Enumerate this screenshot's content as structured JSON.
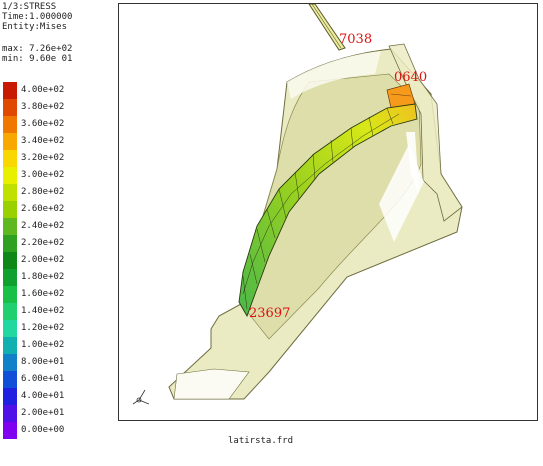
{
  "info": {
    "line1": "1/3:STRESS",
    "line2": "Time:1.000000",
    "line3": "Entity:Mises",
    "max": "max: 7.26e+02",
    "min": "min: 9.60e 01"
  },
  "legend": {
    "entries": [
      {
        "label": "4.00e+02",
        "color": "#c81a00"
      },
      {
        "label": "3.80e+02",
        "color": "#e04a00"
      },
      {
        "label": "3.60e+02",
        "color": "#f07800"
      },
      {
        "label": "3.40e+02",
        "color": "#f8a800"
      },
      {
        "label": "3.20e+02",
        "color": "#f8d800"
      },
      {
        "label": "3.00e+02",
        "color": "#e8f000"
      },
      {
        "label": "2.80e+02",
        "color": "#c0e000"
      },
      {
        "label": "2.60e+02",
        "color": "#98d000"
      },
      {
        "label": "2.40e+02",
        "color": "#60b820"
      },
      {
        "label": "2.20e+02",
        "color": "#30a020"
      },
      {
        "label": "2.00e+02",
        "color": "#108818"
      },
      {
        "label": "1.80e+02",
        "color": "#10a030"
      },
      {
        "label": "1.60e+02",
        "color": "#18c048"
      },
      {
        "label": "1.40e+02",
        "color": "#20d070"
      },
      {
        "label": "1.20e+02",
        "color": "#20d8a0"
      },
      {
        "label": "1.00e+02",
        "color": "#10b0b0"
      },
      {
        "label": "8.00e+01",
        "color": "#1080c8"
      },
      {
        "label": "6.00e+01",
        "color": "#1050d8"
      },
      {
        "label": "4.00e+01",
        "color": "#2020e0"
      },
      {
        "label": "2.00e+01",
        "color": "#5010e8"
      },
      {
        "label": "0.00e+00",
        "color": "#8000f0"
      }
    ]
  },
  "nodes": {
    "top": "7038",
    "right": "0640",
    "bottom": "23697"
  },
  "caption": "latirsta.frd",
  "colors": {
    "shell_fill": "#e6e6b8",
    "shell_edge": "#6e6e40",
    "label_red": "#dd1111"
  }
}
